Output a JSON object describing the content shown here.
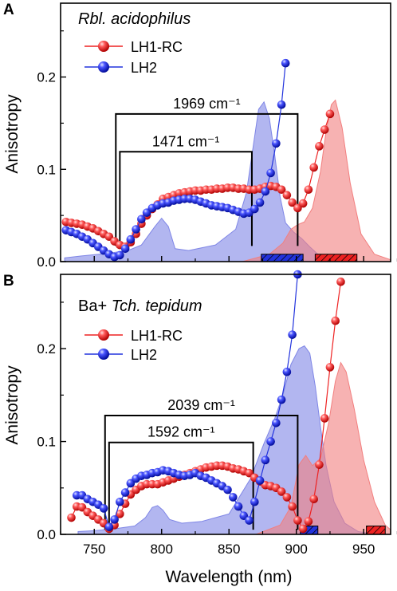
{
  "chart_data": [
    {
      "panel": "A",
      "type": "line",
      "title": "Rbl. acidophilus",
      "title_italic_part": "Rbl. acidophilus",
      "xlabel": "Wavelength (nm)",
      "ylabel": "Anisotropy",
      "xlim": [
        725,
        970
      ],
      "ylim": [
        0,
        0.28
      ],
      "yticks": [
        0.0,
        0.1,
        0.2
      ],
      "ytick_labels": [
        "0.0",
        "0.1",
        "0.2"
      ],
      "grid": false,
      "legend_position": "top-left",
      "series": [
        {
          "name": "LH1-RC",
          "color": "#ee2222",
          "marker": "sphere",
          "x": [
            729,
            733,
            737,
            741,
            745,
            749,
            753,
            757,
            761,
            765,
            769,
            773,
            777,
            781,
            785,
            789,
            793,
            797,
            801,
            805,
            809,
            813,
            817,
            821,
            825,
            829,
            833,
            837,
            841,
            845,
            849,
            853,
            857,
            861,
            865,
            869,
            873,
            877,
            881,
            885,
            889,
            893,
            897,
            901,
            905,
            909,
            913,
            917,
            921,
            925
          ],
          "y": [
            0.043,
            0.042,
            0.041,
            0.04,
            0.038,
            0.036,
            0.033,
            0.03,
            0.027,
            0.022,
            0.018,
            0.016,
            0.021,
            0.03,
            0.041,
            0.05,
            0.057,
            0.062,
            0.068,
            0.07,
            0.072,
            0.074,
            0.075,
            0.076,
            0.077,
            0.077,
            0.078,
            0.078,
            0.079,
            0.079,
            0.08,
            0.08,
            0.079,
            0.079,
            0.078,
            0.078,
            0.079,
            0.081,
            0.082,
            0.081,
            0.078,
            0.072,
            0.064,
            0.058,
            0.063,
            0.078,
            0.102,
            0.125,
            0.143,
            0.16
          ]
        },
        {
          "name": "LH2",
          "color": "#2233dd",
          "marker": "sphere",
          "x": [
            729,
            733,
            737,
            741,
            745,
            749,
            753,
            757,
            761,
            765,
            769,
            773,
            777,
            781,
            785,
            789,
            793,
            797,
            801,
            805,
            809,
            813,
            817,
            821,
            825,
            829,
            833,
            837,
            841,
            845,
            849,
            853,
            857,
            861,
            865,
            869,
            873,
            877,
            881,
            885,
            889,
            892
          ],
          "y": [
            0.034,
            0.032,
            0.03,
            0.027,
            0.024,
            0.02,
            0.016,
            0.012,
            0.008,
            0.005,
            0.007,
            0.014,
            0.024,
            0.035,
            0.046,
            0.053,
            0.058,
            0.061,
            0.063,
            0.064,
            0.066,
            0.067,
            0.068,
            0.068,
            0.067,
            0.065,
            0.063,
            0.061,
            0.06,
            0.059,
            0.058,
            0.056,
            0.054,
            0.052,
            0.053,
            0.057,
            0.064,
            0.076,
            0.096,
            0.128,
            0.17,
            0.215
          ]
        }
      ],
      "absorption_spectra": [
        {
          "name": "LH2 absorption",
          "color": "#7f86e6",
          "x": [
            728,
            740,
            760,
            775,
            785,
            795,
            800,
            805,
            810,
            820,
            840,
            855,
            863,
            868,
            872,
            876,
            880,
            884,
            888,
            892,
            898,
            904,
            910,
            916,
            924,
            934,
            944,
            960,
            970
          ],
          "y": [
            0.004,
            0.006,
            0.009,
            0.012,
            0.018,
            0.038,
            0.047,
            0.038,
            0.014,
            0.012,
            0.018,
            0.035,
            0.075,
            0.125,
            0.165,
            0.173,
            0.155,
            0.115,
            0.07,
            0.042,
            0.032,
            0.025,
            0.016,
            0.008,
            0.003,
            0.001,
            0.0,
            0.0,
            0.0
          ]
        },
        {
          "name": "LH1-RC absorption",
          "color": "#f27f7f",
          "x": [
            860,
            880,
            890,
            896,
            901,
            906,
            912,
            918,
            922,
            926,
            929,
            934,
            940,
            948,
            958,
            970
          ],
          "y": [
            0.0,
            0.008,
            0.02,
            0.035,
            0.04,
            0.043,
            0.058,
            0.098,
            0.14,
            0.17,
            0.175,
            0.145,
            0.085,
            0.03,
            0.008,
            0.002
          ]
        }
      ],
      "annotations": [
        {
          "label": "1969 cm⁻¹",
          "x_start": 766,
          "x_end": 901,
          "y_bar": 0.16,
          "y_bottom": 0.017
        },
        {
          "label": "1471 cm⁻¹",
          "x_start": 769,
          "x_end": 867,
          "y_bar": 0.119,
          "y_bottom": 0.017
        }
      ],
      "hatched_bars": [
        {
          "color": "#2233dd",
          "x_start": 874,
          "x_end": 905,
          "height": 0.008
        },
        {
          "color": "#ee2222",
          "x_start": 914,
          "x_end": 945,
          "height": 0.008
        }
      ]
    },
    {
      "panel": "B",
      "type": "line",
      "title": "Ba+ Tch. tepidum",
      "title_plain_part": "Ba+ ",
      "title_italic_part": "Tch. tepidum",
      "xlabel": "Wavelength (nm)",
      "ylabel": "Anisotropy",
      "xlim": [
        725,
        970
      ],
      "ylim": [
        0,
        0.28
      ],
      "xticks": [
        750,
        800,
        850,
        900,
        950
      ],
      "xtick_labels": [
        "750",
        "800",
        "850",
        "900",
        "950"
      ],
      "yticks": [
        0.0,
        0.1,
        0.2
      ],
      "ytick_labels": [
        "0.0",
        "0.1",
        "0.2"
      ],
      "grid": false,
      "legend_position": "top-left",
      "series": [
        {
          "name": "LH1-RC",
          "color": "#ee2222",
          "marker": "sphere",
          "x": [
            733,
            737,
            741,
            745,
            749,
            753,
            757,
            761,
            765,
            769,
            773,
            777,
            781,
            785,
            789,
            793,
            797,
            801,
            805,
            809,
            813,
            817,
            821,
            825,
            829,
            833,
            837,
            841,
            845,
            849,
            853,
            857,
            861,
            865,
            869,
            873,
            877,
            881,
            885,
            889,
            893,
            897,
            901,
            905,
            909,
            913,
            917,
            921,
            925,
            929,
            933
          ],
          "y": [
            0.018,
            0.03,
            0.029,
            0.024,
            0.02,
            0.016,
            0.012,
            0.006,
            0.01,
            0.022,
            0.033,
            0.043,
            0.048,
            0.052,
            0.054,
            0.054,
            0.054,
            0.056,
            0.058,
            0.06,
            0.062,
            0.064,
            0.066,
            0.068,
            0.07,
            0.072,
            0.073,
            0.074,
            0.074,
            0.073,
            0.071,
            0.07,
            0.068,
            0.066,
            0.061,
            0.057,
            0.053,
            0.052,
            0.05,
            0.046,
            0.04,
            0.03,
            0.015,
            0.006,
            0.014,
            0.038,
            0.075,
            0.125,
            0.18,
            0.23,
            0.272
          ]
        },
        {
          "name": "LH2",
          "color": "#2233dd",
          "marker": "sphere",
          "x": [
            737,
            741,
            745,
            749,
            753,
            757,
            761,
            765,
            769,
            773,
            777,
            781,
            785,
            789,
            793,
            797,
            801,
            805,
            809,
            813,
            817,
            821,
            825,
            829,
            833,
            837,
            841,
            845,
            849,
            853,
            857,
            861,
            865,
            869,
            873,
            877,
            881,
            885,
            889,
            893,
            897,
            901
          ],
          "y": [
            0.042,
            0.042,
            0.038,
            0.035,
            0.032,
            0.028,
            0.008,
            0.016,
            0.035,
            0.045,
            0.055,
            0.06,
            0.063,
            0.064,
            0.066,
            0.067,
            0.069,
            0.068,
            0.066,
            0.064,
            0.063,
            0.064,
            0.066,
            0.063,
            0.061,
            0.058,
            0.055,
            0.052,
            0.048,
            0.04,
            0.03,
            0.02,
            0.015,
            0.035,
            0.058,
            0.08,
            0.1,
            0.12,
            0.145,
            0.175,
            0.215,
            0.28
          ]
        }
      ],
      "absorption_spectra": [
        {
          "name": "LH2 absorption",
          "color": "#7f86e6",
          "x": [
            738,
            750,
            765,
            780,
            788,
            793,
            797,
            801,
            806,
            815,
            830,
            850,
            866,
            876,
            884,
            890,
            896,
            902,
            906,
            910,
            914,
            918,
            922,
            928,
            936,
            946,
            960,
            970
          ],
          "y": [
            0.003,
            0.004,
            0.006,
            0.009,
            0.018,
            0.029,
            0.031,
            0.026,
            0.016,
            0.012,
            0.014,
            0.022,
            0.06,
            0.098,
            0.125,
            0.15,
            0.183,
            0.2,
            0.203,
            0.195,
            0.16,
            0.115,
            0.075,
            0.035,
            0.012,
            0.003,
            0.0,
            0.0
          ]
        },
        {
          "name": "LH1-RC absorption",
          "color": "#f27f7f",
          "x": [
            870,
            888,
            896,
            902,
            907,
            912,
            918,
            924,
            929,
            933,
            937,
            943,
            950,
            958,
            966,
            970
          ],
          "y": [
            0.0,
            0.01,
            0.03,
            0.075,
            0.085,
            0.074,
            0.082,
            0.12,
            0.165,
            0.185,
            0.175,
            0.135,
            0.08,
            0.035,
            0.01,
            0.005
          ]
        }
      ],
      "annotations": [
        {
          "label": "2039 cm⁻¹",
          "x_start": 758,
          "x_end": 901,
          "y_bar": 0.128,
          "y_bottom": 0.005
        },
        {
          "label": "1592 cm⁻¹",
          "x_start": 761,
          "x_end": 868,
          "y_bar": 0.099,
          "y_bottom": 0.005
        }
      ],
      "hatched_bars": [
        {
          "color": "#2233dd",
          "x_start": 903,
          "x_end": 916,
          "height": 0.009
        },
        {
          "color": "#ee2222",
          "x_start": 952,
          "x_end": 966,
          "height": 0.009
        }
      ]
    }
  ]
}
